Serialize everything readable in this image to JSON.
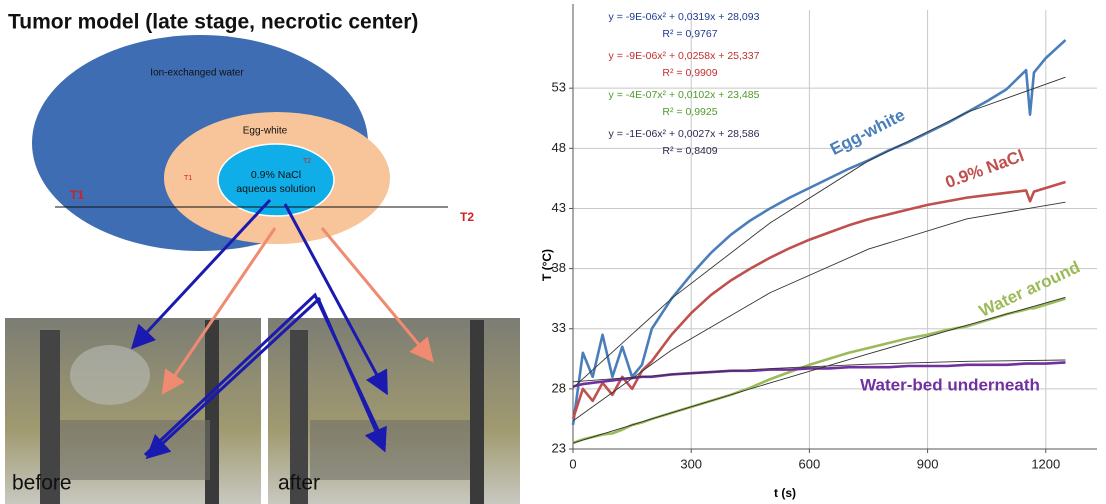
{
  "title": "Tumor model (late stage, necrotic center)",
  "diagram": {
    "outer": "Ion-exchanged water",
    "middle": "Egg-white",
    "inner_line1": "0.9% NaCl",
    "inner_line2": "aqueous solution",
    "probe_t1": "T1",
    "probe_t2": "T2",
    "t1": "T1",
    "t2": "T2"
  },
  "photos": [
    "before",
    "after"
  ],
  "chart_data": {
    "type": "line",
    "x_label": "t (s)",
    "y_label": "T (°C)",
    "x": [
      0,
      25,
      50,
      75,
      100,
      125,
      150,
      175,
      200,
      250,
      300,
      350,
      400,
      450,
      500,
      550,
      600,
      650,
      700,
      750,
      800,
      850,
      900,
      950,
      1000,
      1050,
      1100,
      1150,
      1160,
      1170,
      1200,
      1250
    ],
    "series": [
      {
        "name": "Egg-white",
        "color": "#4a7ebb",
        "values": [
          25,
          31,
          29,
          32.5,
          29,
          31.5,
          29,
          30,
          33,
          35.5,
          37.5,
          39.3,
          40.8,
          42,
          43,
          43.9,
          44.7,
          45.5,
          46.3,
          47,
          47.8,
          48.5,
          49.3,
          50.1,
          51,
          51.9,
          52.9,
          54.5,
          50.8,
          54.3,
          55.5,
          57
        ]
      },
      {
        "name": "0.9% NaCl",
        "color": "#c0504d",
        "values": [
          25.5,
          28,
          27,
          28.5,
          27.5,
          29,
          28,
          29.5,
          30.3,
          32.5,
          34.3,
          35.8,
          37,
          38,
          38.9,
          39.7,
          40.4,
          41,
          41.6,
          42.1,
          42.5,
          42.9,
          43.3,
          43.6,
          43.9,
          44.1,
          44.3,
          44.5,
          43.6,
          44.4,
          44.7,
          45.2
        ]
      },
      {
        "name": "Water around",
        "color": "#9bbb59",
        "values": [
          23.5,
          23.8,
          24,
          24.2,
          24.3,
          24.6,
          25,
          25.2,
          25.5,
          26,
          26.5,
          27,
          27.5,
          28.1,
          28.8,
          29.4,
          30,
          30.5,
          31,
          31.4,
          31.8,
          32.2,
          32.5,
          32.9,
          33.2,
          33.7,
          34.2,
          34.6,
          34.7,
          34.7,
          35,
          35.5
        ]
      },
      {
        "name": "Water-bed underneath",
        "color": "#7030a0",
        "values": [
          28.2,
          28.4,
          28.5,
          28.6,
          28.7,
          28.8,
          28.9,
          29,
          29,
          29.2,
          29.3,
          29.4,
          29.5,
          29.5,
          29.6,
          29.6,
          29.7,
          29.7,
          29.8,
          29.8,
          29.8,
          29.9,
          29.9,
          29.9,
          30,
          30,
          30,
          30.1,
          30.1,
          30.1,
          30.1,
          30.2
        ]
      }
    ],
    "trend_x": [
      0,
      250,
      500,
      750,
      1000,
      1250
    ],
    "trendlines": [
      {
        "color": "#333333",
        "values": [
          28.09,
          35.51,
          41.79,
          46.96,
          50.99,
          53.91
        ]
      },
      {
        "color": "#333333",
        "values": [
          25.34,
          31.22,
          35.99,
          39.62,
          42.14,
          43.52
        ]
      },
      {
        "color": "#333333",
        "values": [
          23.49,
          26.01,
          28.49,
          30.91,
          33.29,
          35.61
        ]
      },
      {
        "color": "#333333",
        "values": [
          28.59,
          29.2,
          29.69,
          30.05,
          30.29,
          30.4
        ]
      }
    ],
    "equations": [
      {
        "equation": "y = -9E-06x² + 0,0319x + 28,093",
        "r2": "R² = 0,9767",
        "color": "#1f3a93"
      },
      {
        "equation": "y = -9E-06x² + 0,0258x + 25,337",
        "r2": "R² = 0,9909",
        "color": "#c0302d"
      },
      {
        "equation": "y = -4E-07x² + 0,0102x + 23,485",
        "r2": "R² = 0,9925",
        "color": "#4f9a2a"
      },
      {
        "equation": "y = -1E-06x² + 0,0027x + 28,586",
        "r2": "R² = 0,8409",
        "color": "#2a2a50"
      }
    ],
    "xlim": [
      0,
      1330
    ],
    "xticks": [
      0,
      300,
      600,
      900,
      1200
    ],
    "ylim": [
      23,
      59.5
    ],
    "yticks": [
      23,
      28,
      33,
      38,
      43,
      48,
      53
    ],
    "grid": true
  }
}
